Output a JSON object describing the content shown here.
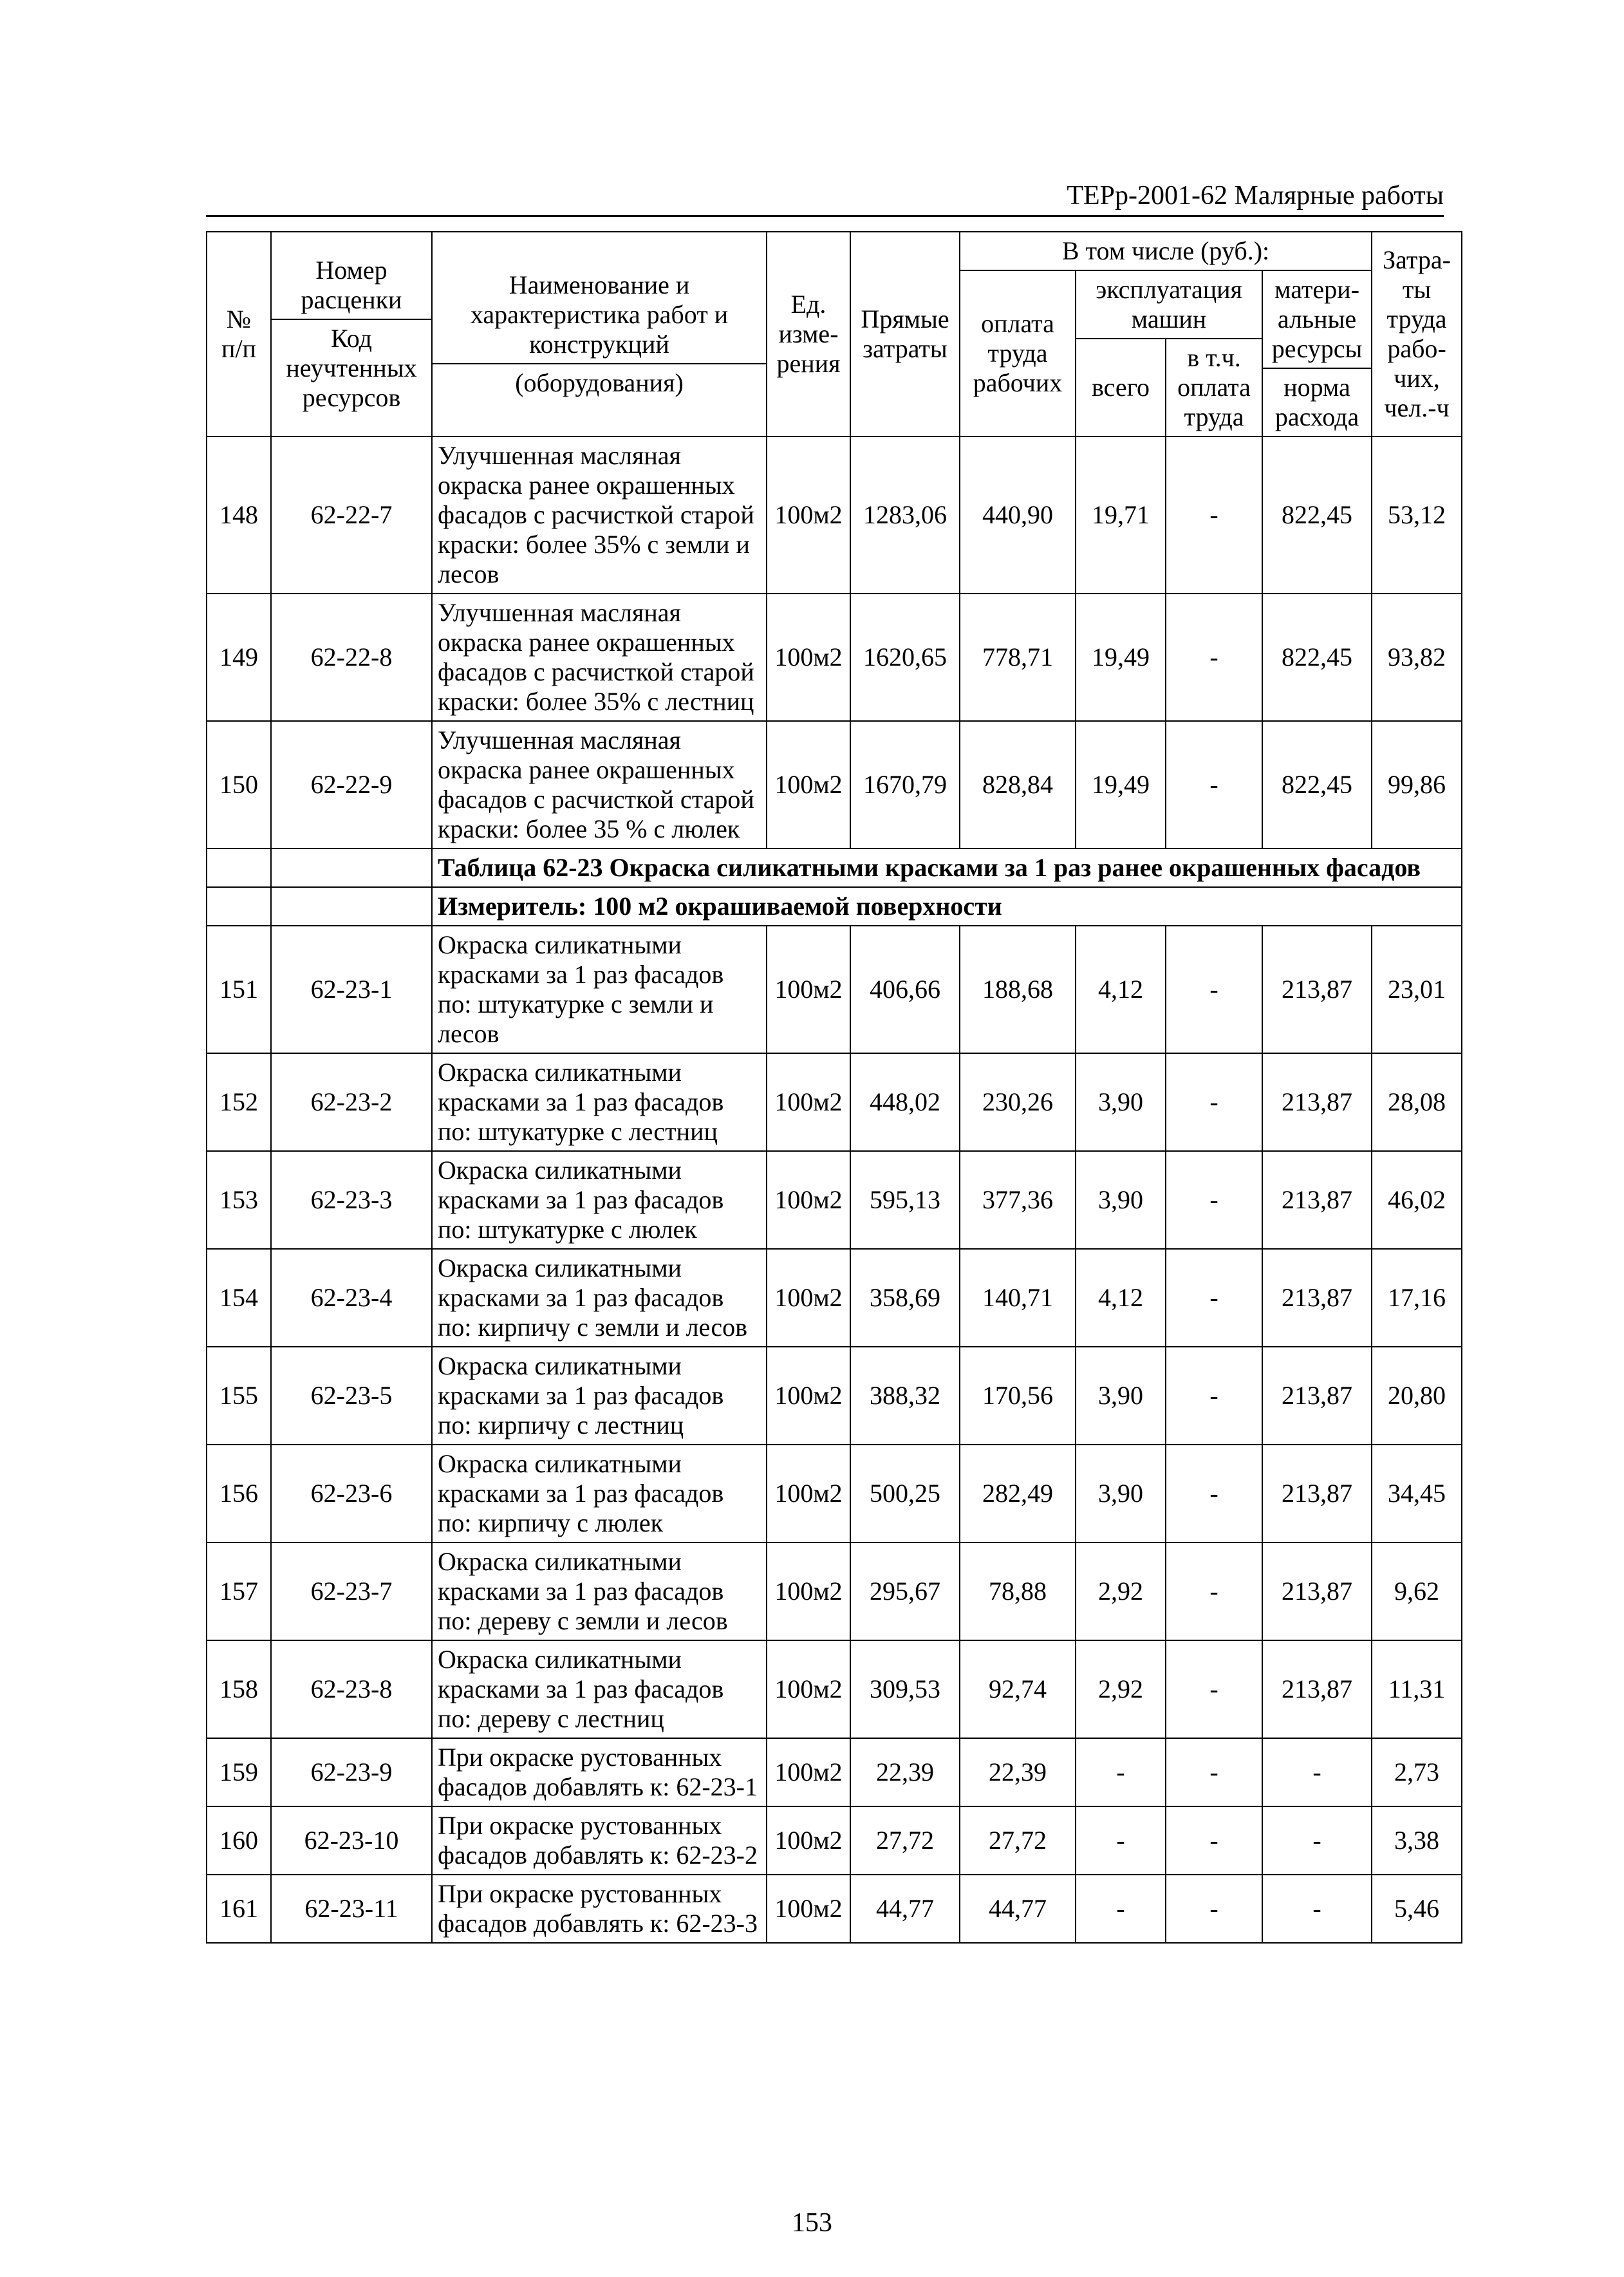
{
  "document": {
    "header_right": "ТЕРр-2001-62 Малярные работы",
    "page_number": "153",
    "font_family": "Times New Roman",
    "background_color": "#ffffff",
    "text_color": "#000000",
    "border_color": "#000000",
    "header_font_size_pt": 42,
    "body_font_size_pt": 40
  },
  "columns": {
    "col1_header_a": "№",
    "col1_header_b": "п/п",
    "col2_header_a": "Номер расценки",
    "col2_header_b": "Код неучтенных ресурсов",
    "col3_header_a": "Наименование и характеристика работ и конструкций",
    "col3_header_b": "(оборудования)",
    "col4_header": "Ед. изме­рения",
    "col5_header": "Прямые затраты",
    "group_header": "В том числе (руб.):",
    "col6_header": "оплата труда рабочих",
    "col7_8_group": "эксплуатация машин",
    "col7_header": "всего",
    "col8_header": "в т.ч. оплата труда",
    "col9_header_a": "матери­альные ресурсы",
    "col9_header_b": "норма расхода",
    "col10_header": "Затра­ты труда рабо­чих, чел.-ч"
  },
  "section": {
    "title": "Таблица 62-23 Окраска силикатными красками за 1 раз ранее окрашенных фасадов",
    "measure": "Измеритель: 100 м2 окрашиваемой поверхности"
  },
  "rows": [
    {
      "n": "148",
      "code": "62-22-7",
      "desc": "Улучшенная масляная окраска ранее окрашенных фасадов с расчисткой старой краски: более 35% с земли и лесов",
      "unit": "100м2",
      "direct": "1283,06",
      "labor": "440,90",
      "mach_total": "19,71",
      "mach_labor": "-",
      "mat": "822,45",
      "hours": "53,12"
    },
    {
      "n": "149",
      "code": "62-22-8",
      "desc": "Улучшенная масляная окраска ранее окрашенных фасадов с расчисткой старой краски: более 35% с лестниц",
      "unit": "100м2",
      "direct": "1620,65",
      "labor": "778,71",
      "mach_total": "19,49",
      "mach_labor": "-",
      "mat": "822,45",
      "hours": "93,82"
    },
    {
      "n": "150",
      "code": "62-22-9",
      "desc": "Улучшенная масляная окраска ранее окрашенных фасадов с расчисткой старой краски: более 35 % с люлек",
      "unit": "100м2",
      "direct": "1670,79",
      "labor": "828,84",
      "mach_total": "19,49",
      "mach_labor": "-",
      "mat": "822,45",
      "hours": "99,86"
    },
    {
      "section": true
    },
    {
      "n": "151",
      "code": "62-23-1",
      "desc": "Окраска силикатными красками за 1 раз фасадов по: штукатурке с земли и лесов",
      "unit": "100м2",
      "direct": "406,66",
      "labor": "188,68",
      "mach_total": "4,12",
      "mach_labor": "-",
      "mat": "213,87",
      "hours": "23,01"
    },
    {
      "n": "152",
      "code": "62-23-2",
      "desc": "Окраска силикатными красками за 1 раз фасадов по: штукатурке с лестниц",
      "unit": "100м2",
      "direct": "448,02",
      "labor": "230,26",
      "mach_total": "3,90",
      "mach_labor": "-",
      "mat": "213,87",
      "hours": "28,08"
    },
    {
      "n": "153",
      "code": "62-23-3",
      "desc": "Окраска силикатными красками за 1 раз фасадов по: штукатурке с люлек",
      "unit": "100м2",
      "direct": "595,13",
      "labor": "377,36",
      "mach_total": "3,90",
      "mach_labor": "-",
      "mat": "213,87",
      "hours": "46,02"
    },
    {
      "n": "154",
      "code": "62-23-4",
      "desc": "Окраска силикатными красками за 1 раз фасадов по: кирпичу с земли и лесов",
      "unit": "100м2",
      "direct": "358,69",
      "labor": "140,71",
      "mach_total": "4,12",
      "mach_labor": "-",
      "mat": "213,87",
      "hours": "17,16"
    },
    {
      "n": "155",
      "code": "62-23-5",
      "desc": "Окраска силикатными красками за 1 раз фасадов по: кирпичу с лестниц",
      "unit": "100м2",
      "direct": "388,32",
      "labor": "170,56",
      "mach_total": "3,90",
      "mach_labor": "-",
      "mat": "213,87",
      "hours": "20,80"
    },
    {
      "n": "156",
      "code": "62-23-6",
      "desc": "Окраска силикатными красками за 1 раз фасадов по: кирпичу с люлек",
      "unit": "100м2",
      "direct": "500,25",
      "labor": "282,49",
      "mach_total": "3,90",
      "mach_labor": "-",
      "mat": "213,87",
      "hours": "34,45"
    },
    {
      "n": "157",
      "code": "62-23-7",
      "desc": "Окраска силикатными красками за 1 раз фасадов по: дереву с земли и лесов",
      "unit": "100м2",
      "direct": "295,67",
      "labor": "78,88",
      "mach_total": "2,92",
      "mach_labor": "-",
      "mat": "213,87",
      "hours": "9,62"
    },
    {
      "n": "158",
      "code": "62-23-8",
      "desc": "Окраска силикатными красками за 1 раз фасадов по: дереву с лестниц",
      "unit": "100м2",
      "direct": "309,53",
      "labor": "92,74",
      "mach_total": "2,92",
      "mach_labor": "-",
      "mat": "213,87",
      "hours": "11,31"
    },
    {
      "n": "159",
      "code": "62-23-9",
      "desc": "При окраске рустованных фасадов добавлять к: 62-23-1",
      "unit": "100м2",
      "direct": "22,39",
      "labor": "22,39",
      "mach_total": "-",
      "mach_labor": "-",
      "mat": "-",
      "hours": "2,73"
    },
    {
      "n": "160",
      "code": "62-23-10",
      "desc": "При окраске рустованных фасадов добавлять к: 62-23-2",
      "unit": "100м2",
      "direct": "27,72",
      "labor": "27,72",
      "mach_total": "-",
      "mach_labor": "-",
      "mat": "-",
      "hours": "3,38"
    },
    {
      "n": "161",
      "code": "62-23-11",
      "desc": "При окраске рустованных фасадов добавлять к: 62-23-3",
      "unit": "100м2",
      "direct": "44,77",
      "labor": "44,77",
      "mach_total": "-",
      "mach_labor": "-",
      "mat": "-",
      "hours": "5,46"
    }
  ]
}
